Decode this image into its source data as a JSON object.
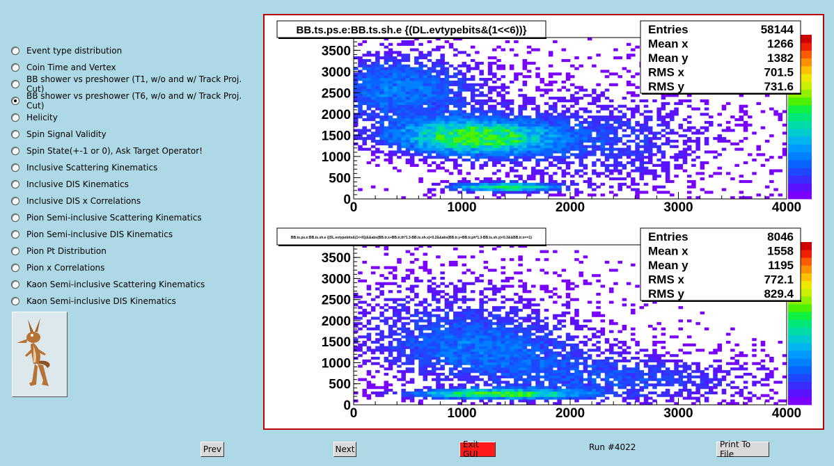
{
  "menu": {
    "items": [
      {
        "label": "Event type distribution",
        "selected": false
      },
      {
        "label": "Coin Time and Vertex",
        "selected": false
      },
      {
        "label": "BB shower vs preshower (T1, w/o and w/ Track Proj. Cut)",
        "selected": false
      },
      {
        "label": "BB shower vs preshower (T6, w/o and w/ Track Proj. Cut)",
        "selected": true
      },
      {
        "label": "Helicity",
        "selected": false
      },
      {
        "label": "Spin Signal Validity",
        "selected": false
      },
      {
        "label": "Spin State(+-1 or 0), Ask Target Operator!",
        "selected": false
      },
      {
        "label": "Inclusive Scattering Kinematics",
        "selected": false
      },
      {
        "label": "Inclusive DIS Kinematics",
        "selected": false
      },
      {
        "label": "Inclusive DIS x Correlations",
        "selected": false
      },
      {
        "label": "Pion Semi-inclusive Scattering Kinematics",
        "selected": false
      },
      {
        "label": "Pion Semi-inclusive DIS Kinematics",
        "selected": false
      },
      {
        "label": "Pion Pt Distribution",
        "selected": false
      },
      {
        "label": "Pion x Correlations",
        "selected": false
      },
      {
        "label": "Kaon Semi-inclusive Scattering Kinematics",
        "selected": false
      },
      {
        "label": "Kaon Semi-inclusive DIS Kinematics",
        "selected": false
      }
    ]
  },
  "logo": {
    "icon": "coyote-cartoon-icon"
  },
  "buttons": {
    "prev": "Prev",
    "next": "Next",
    "exit": "Exit GUI",
    "print": "Print To File"
  },
  "run_label": "Run #4022",
  "colors": {
    "background": "#add8e6",
    "canvas_border": "#bb0000",
    "exit_button": "#ff1a1a"
  },
  "chart_data": [
    {
      "type": "heatmap",
      "title": "BB.ts.ps.e:BB.ts.sh.e {(DL.evtypebits&(1<<6))}",
      "xlim": [
        0,
        4000
      ],
      "ylim": [
        0,
        3800
      ],
      "xticks": [
        0,
        1000,
        2000,
        3000,
        4000
      ],
      "yticks": [
        0,
        500,
        1000,
        1500,
        2000,
        2500,
        3000,
        3500
      ],
      "stats": [
        {
          "label": "Entries",
          "value": "58144"
        },
        {
          "label": "Mean x",
          "value": "1266"
        },
        {
          "label": "Mean y",
          "value": "1382"
        },
        {
          "label": "RMS x",
          "value": "701.5"
        },
        {
          "label": "RMS y",
          "value": "731.6"
        }
      ],
      "clusters": [
        {
          "x": 1100,
          "y": 1450,
          "sx": 500,
          "sy": 280,
          "w": 1.0
        },
        {
          "x": 400,
          "y": 2600,
          "sx": 550,
          "sy": 600,
          "w": 0.45
        },
        {
          "x": 1400,
          "y": 280,
          "sx": 350,
          "sy": 70,
          "w": 0.9
        },
        {
          "x": 2300,
          "y": 1400,
          "sx": 800,
          "sy": 800,
          "w": 0.25
        }
      ]
    },
    {
      "type": "heatmap",
      "title": "BB.ts.ps.e:BB.ts.sh.e {(DL.evtypebits&(1<<6))&&abs(BB.tr.x+BB.tr.th*1.3-BB.ts.sh.x)<0.2&&abs(BB.tr.y+BB.tr.ph*1.3-BB.ts.sh.y)<0.3&&BB.tr.n==1}",
      "xlim": [
        0,
        4000
      ],
      "ylim": [
        0,
        3800
      ],
      "xticks": [
        0,
        1000,
        2000,
        3000,
        4000
      ],
      "yticks": [
        0,
        500,
        1000,
        1500,
        2000,
        2500,
        3000,
        3500
      ],
      "stats": [
        {
          "label": "Entries",
          "value": "8046"
        },
        {
          "label": "Mean x",
          "value": "1558"
        },
        {
          "label": "Mean y",
          "value": "1195"
        },
        {
          "label": "RMS x",
          "value": "772.1"
        },
        {
          "label": "RMS y",
          "value": "829.4"
        }
      ],
      "clusters": [
        {
          "x": 1300,
          "y": 260,
          "sx": 500,
          "sy": 80,
          "w": 1.0
        },
        {
          "x": 1200,
          "y": 1300,
          "sx": 700,
          "sy": 500,
          "w": 0.35
        },
        {
          "x": 2500,
          "y": 600,
          "sx": 900,
          "sy": 400,
          "w": 0.3
        },
        {
          "x": 800,
          "y": 2200,
          "sx": 800,
          "sy": 700,
          "w": 0.18
        }
      ]
    }
  ]
}
